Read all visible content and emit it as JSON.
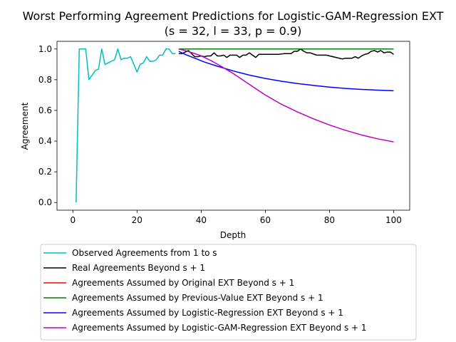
{
  "chart_data": {
    "type": "line",
    "title_line1": "Worst Performing Agreement Predictions for Logistic-GAM-Regression EXT",
    "title_line2": "(s = 32, l = 33, p = 0.9)",
    "xlabel": "Depth",
    "ylabel": "Agreement",
    "xlim": [
      -4.95,
      105
    ],
    "ylim": [
      -0.05,
      1.05
    ],
    "x_ticks": [
      0,
      20,
      40,
      60,
      80,
      100
    ],
    "y_ticks": [
      0.0,
      0.2,
      0.4,
      0.6,
      0.8,
      1.0
    ],
    "x_tick_labels": [
      "0",
      "20",
      "40",
      "60",
      "80",
      "100"
    ],
    "y_tick_labels": [
      "0.0",
      "0.2",
      "0.4",
      "0.6",
      "0.8",
      "1.0"
    ],
    "legend_position": "below plot",
    "series": [
      {
        "name": "Observed Agreements from 1 to s",
        "color": "#00bfbf",
        "x": [
          1,
          2,
          3,
          4,
          5,
          6,
          7,
          8,
          9,
          10,
          11,
          12,
          13,
          14,
          15,
          16,
          17,
          18,
          19,
          20,
          21,
          22,
          23,
          24,
          25,
          26,
          27,
          28,
          29,
          30,
          31,
          32
        ],
        "y": [
          0.0,
          1.0,
          1.0,
          1.0,
          0.8,
          0.83,
          0.86,
          0.87,
          1.0,
          0.9,
          0.91,
          0.92,
          0.93,
          1.0,
          0.93,
          0.94,
          0.94,
          0.95,
          0.9,
          0.85,
          0.9,
          0.91,
          0.95,
          0.92,
          0.92,
          0.93,
          0.96,
          0.96,
          1.0,
          1.0,
          0.97,
          0.97
        ]
      },
      {
        "name": "Real Agreements Beyond s + 1",
        "color": "#000000",
        "x": [
          33,
          34,
          35,
          36,
          37,
          38,
          39,
          40,
          41,
          42,
          43,
          44,
          45,
          46,
          47,
          48,
          49,
          50,
          51,
          52,
          53,
          54,
          55,
          56,
          57,
          58,
          60,
          62,
          64,
          66,
          68,
          69,
          70,
          71,
          72,
          73,
          74,
          76,
          78,
          79,
          84,
          85,
          86,
          87,
          88,
          89,
          90,
          91,
          92,
          93,
          94,
          95,
          96,
          97,
          98,
          99,
          100
        ],
        "y": [
          0.97,
          0.97,
          0.98,
          0.99,
          0.97,
          0.95,
          0.95,
          0.955,
          0.95,
          0.955,
          0.955,
          0.975,
          0.955,
          0.955,
          0.96,
          0.945,
          0.96,
          0.96,
          0.96,
          0.945,
          0.96,
          0.96,
          0.975,
          0.96,
          0.945,
          0.965,
          0.965,
          0.965,
          0.965,
          0.97,
          0.97,
          0.985,
          0.985,
          1.0,
          0.985,
          0.975,
          0.975,
          0.96,
          0.96,
          0.96,
          0.935,
          0.94,
          0.94,
          0.94,
          0.95,
          0.94,
          0.955,
          0.965,
          0.97,
          0.985,
          0.99,
          0.98,
          0.99,
          0.975,
          0.98,
          0.98,
          0.965
        ]
      },
      {
        "name": "Agreements Assumed by Original EXT Beyond s + 1",
        "color": "#ff0000",
        "x": [
          33,
          100
        ],
        "y": [
          1.0,
          1.0
        ]
      },
      {
        "name": "Agreements Assumed by Previous-Value EXT Beyond s + 1",
        "color": "#008000",
        "x": [
          33,
          100
        ],
        "y": [
          1.0,
          1.0
        ]
      },
      {
        "name": "Agreements Assumed by Logistic-Regression EXT Beyond s + 1",
        "color": "#0000ff",
        "x": [
          33,
          35,
          38,
          41,
          45,
          50,
          55,
          60,
          65,
          70,
          75,
          80,
          85,
          90,
          95,
          100
        ],
        "y": [
          0.985,
          0.965,
          0.94,
          0.915,
          0.888,
          0.857,
          0.83,
          0.808,
          0.79,
          0.775,
          0.763,
          0.752,
          0.743,
          0.737,
          0.732,
          0.728
        ]
      },
      {
        "name": "Agreements Assumed by Logistic-GAM-Regression EXT Beyond s + 1",
        "color": "#bf00bf",
        "x": [
          33,
          35,
          38,
          40,
          43,
          46,
          50,
          55,
          60,
          65,
          70,
          75,
          80,
          85,
          90,
          95,
          100
        ],
        "y": [
          1.0,
          0.99,
          0.97,
          0.955,
          0.925,
          0.89,
          0.84,
          0.77,
          0.7,
          0.64,
          0.59,
          0.545,
          0.505,
          0.47,
          0.44,
          0.415,
          0.395
        ]
      }
    ]
  }
}
